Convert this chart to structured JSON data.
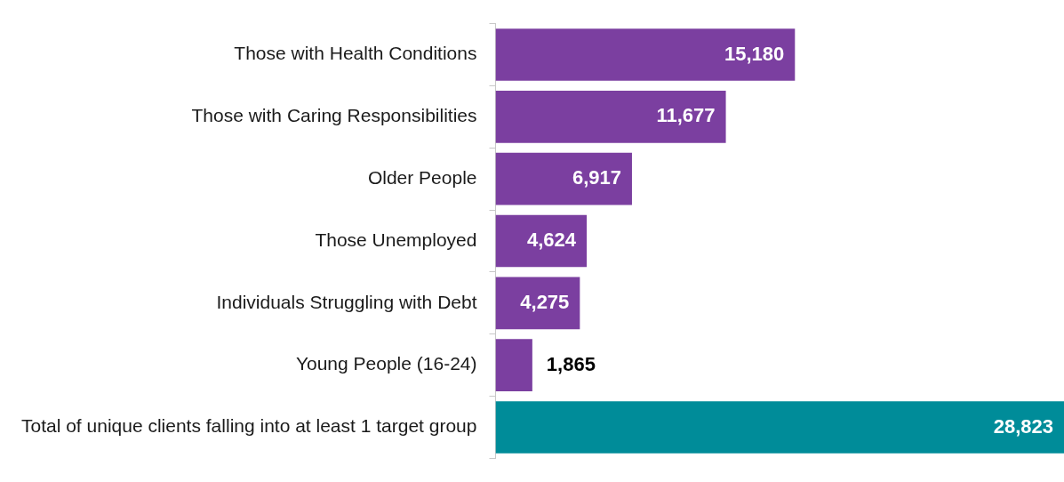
{
  "chart_data": {
    "type": "bar",
    "orientation": "horizontal",
    "categories": [
      "Those with Health Conditions",
      "Those with Caring Responsibilities",
      "Older People",
      "Those Unemployed",
      "Individuals Struggling with Debt",
      "Young People (16-24)",
      "Total of unique clients falling into at least 1 target group"
    ],
    "values": [
      15180,
      11677,
      6917,
      4624,
      4275,
      1865,
      28823
    ],
    "colors": [
      "#7b3fa0",
      "#7b3fa0",
      "#7b3fa0",
      "#7b3fa0",
      "#7b3fa0",
      "#7b3fa0",
      "#008c99"
    ],
    "value_labels": [
      "15,180",
      "11,677",
      "6,917",
      "4,624",
      "4,275",
      "1,865",
      "28,823"
    ],
    "grid": false,
    "legend": false
  }
}
